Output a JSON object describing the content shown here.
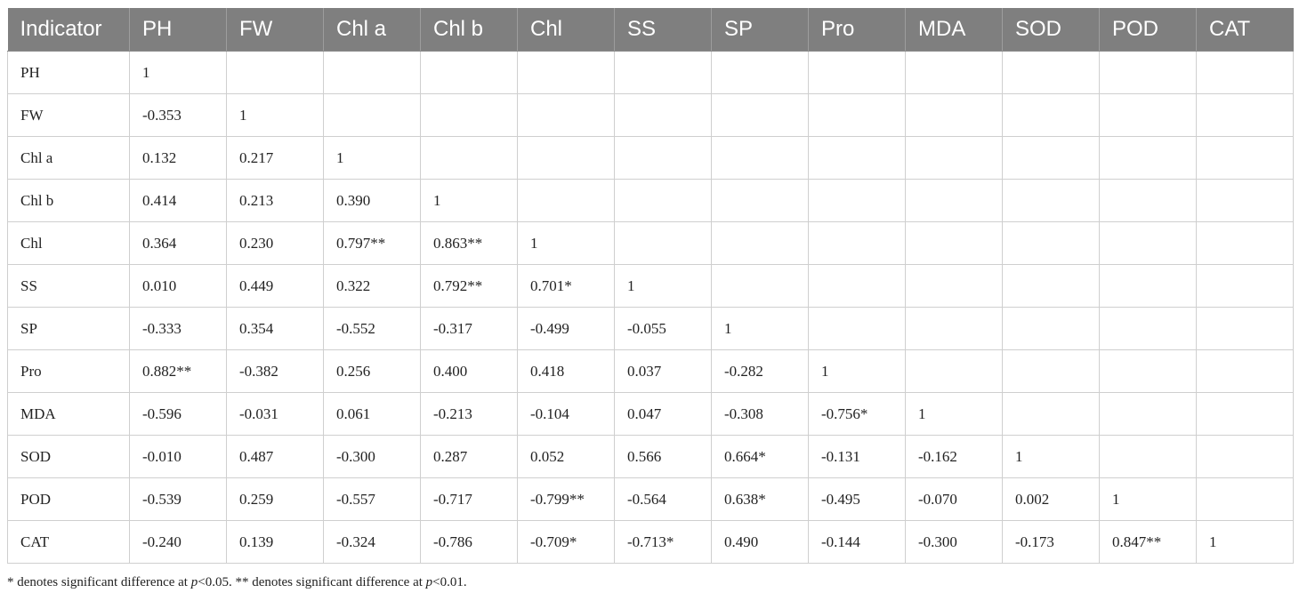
{
  "table": {
    "headers": [
      "Indicator",
      "PH",
      "FW",
      "Chl a",
      "Chl b",
      "Chl",
      "SS",
      "SP",
      "Pro",
      "MDA",
      "SOD",
      "POD",
      "CAT"
    ],
    "rows": [
      [
        "PH",
        "1",
        "",
        "",
        "",
        "",
        "",
        "",
        "",
        "",
        "",
        "",
        ""
      ],
      [
        "FW",
        "-0.353",
        "1",
        "",
        "",
        "",
        "",
        "",
        "",
        "",
        "",
        "",
        ""
      ],
      [
        "Chl a",
        "0.132",
        "0.217",
        "1",
        "",
        "",
        "",
        "",
        "",
        "",
        "",
        "",
        ""
      ],
      [
        "Chl b",
        "0.414",
        "0.213",
        "0.390",
        "1",
        "",
        "",
        "",
        "",
        "",
        "",
        "",
        ""
      ],
      [
        "Chl",
        "0.364",
        "0.230",
        "0.797**",
        "0.863**",
        "1",
        "",
        "",
        "",
        "",
        "",
        "",
        ""
      ],
      [
        "SS",
        "0.010",
        "0.449",
        "0.322",
        "0.792**",
        "0.701*",
        "1",
        "",
        "",
        "",
        "",
        "",
        ""
      ],
      [
        "SP",
        "-0.333",
        "0.354",
        "-0.552",
        "-0.317",
        "-0.499",
        "-0.055",
        "1",
        "",
        "",
        "",
        "",
        ""
      ],
      [
        "Pro",
        "0.882**",
        "-0.382",
        "0.256",
        "0.400",
        "0.418",
        "0.037",
        "-0.282",
        "1",
        "",
        "",
        "",
        ""
      ],
      [
        "MDA",
        "-0.596",
        "-0.031",
        "0.061",
        "-0.213",
        "-0.104",
        "0.047",
        "-0.308",
        "-0.756*",
        "1",
        "",
        "",
        ""
      ],
      [
        "SOD",
        "-0.010",
        "0.487",
        "-0.300",
        "0.287",
        "0.052",
        "0.566",
        "0.664*",
        "-0.131",
        "-0.162",
        "1",
        "",
        ""
      ],
      [
        "POD",
        "-0.539",
        "0.259",
        "-0.557",
        "-0.717",
        "-0.799**",
        "-0.564",
        "0.638*",
        "-0.495",
        "-0.070",
        "0.002",
        "1",
        ""
      ],
      [
        "CAT",
        "-0.240",
        "0.139",
        "-0.324",
        "-0.786",
        "-0.709*",
        "-0.713*",
        "0.490",
        "-0.144",
        "-0.300",
        "-0.173",
        "0.847**",
        "1"
      ]
    ]
  },
  "footnote": {
    "part1": "* denotes significant difference at ",
    "p1": "p",
    "part2": "<0.05. ** denotes significant difference at ",
    "p2": "p",
    "part3": "<0.01."
  },
  "colors": {
    "header_bg": "#7f7f7f",
    "header_text": "#ffffff",
    "grid_line": "#cfcfcf"
  }
}
